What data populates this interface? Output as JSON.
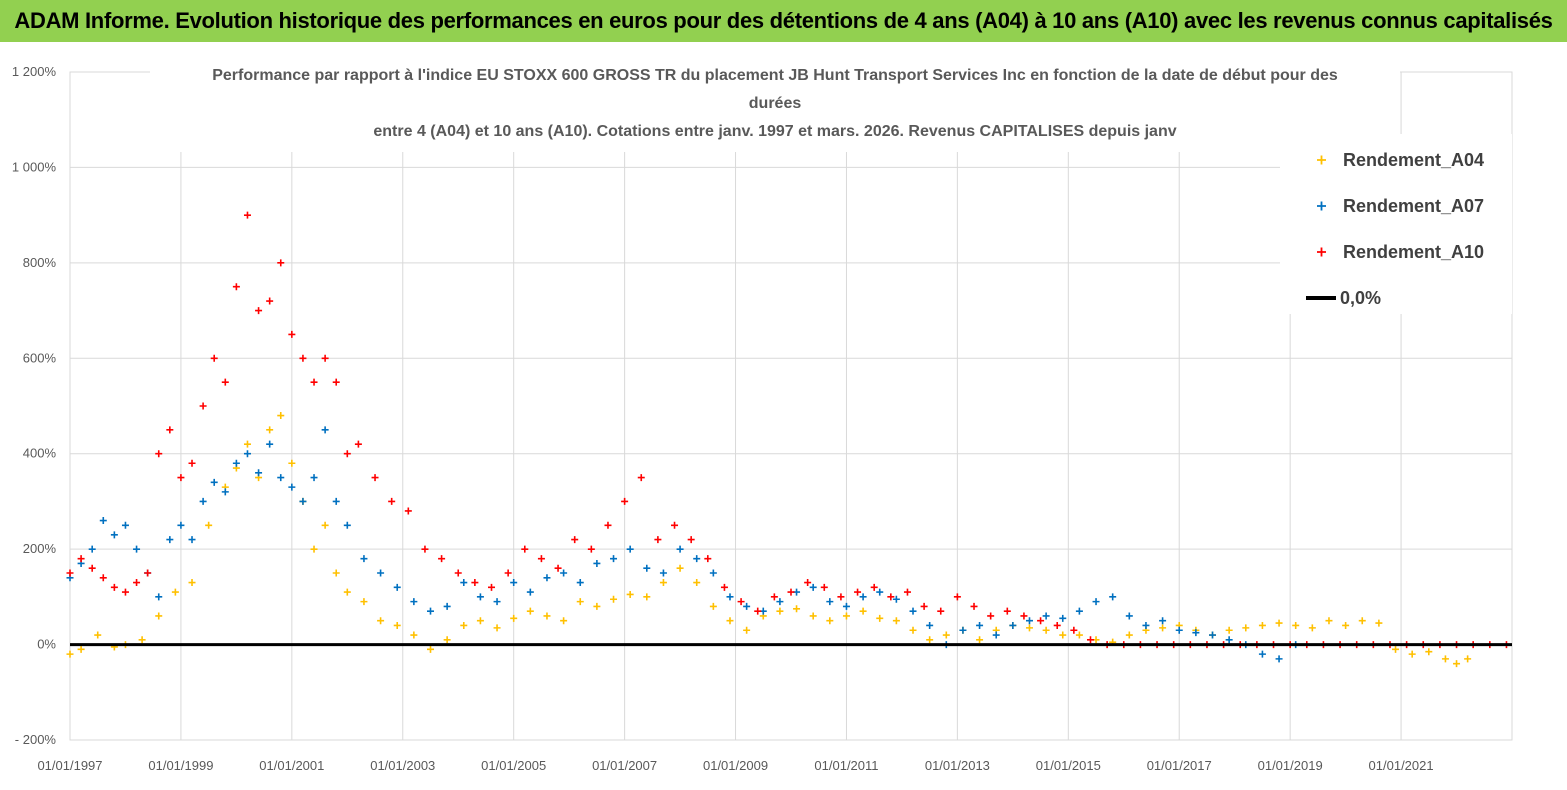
{
  "banner": {
    "title": "ADAM Informe. Evolution historique des performances en euros pour des détentions de 4 ans (A04) à 10 ans (A10) avec les revenus connus capitalisés"
  },
  "chart_data": {
    "type": "scatter",
    "title_lines": [
      "Performance par rapport à l'indice EU STOXX 600 GROSS TR  du placement JB Hunt Transport Services  Inc en  fonction de la date de début pour des",
      "durées",
      "entre 4 (A04) et 10 ans (A10). Cotations entre janv. 1997 et mars. 2026. Revenus CAPITALISES depuis janv"
    ],
    "ylim": [
      -200,
      1200
    ],
    "xlim": [
      1997.0,
      2023.0
    ],
    "y_ticks": [
      {
        "value": 1200,
        "label": "1 200%"
      },
      {
        "value": 1000,
        "label": "1 000%"
      },
      {
        "value": 800,
        "label": "800%"
      },
      {
        "value": 600,
        "label": "600%"
      },
      {
        "value": 400,
        "label": "400%"
      },
      {
        "value": 200,
        "label": "200%"
      },
      {
        "value": 0,
        "label": "0%"
      },
      {
        "value": -200,
        "label": "- 200%"
      }
    ],
    "x_ticks": [
      {
        "value": 1997,
        "label": "01/01/1997"
      },
      {
        "value": 1999,
        "label": "01/01/1999"
      },
      {
        "value": 2001,
        "label": "01/01/2001"
      },
      {
        "value": 2003,
        "label": "01/01/2003"
      },
      {
        "value": 2005,
        "label": "01/01/2005"
      },
      {
        "value": 2007,
        "label": "01/01/2007"
      },
      {
        "value": 2009,
        "label": "01/01/2009"
      },
      {
        "value": 2011,
        "label": "01/01/2011"
      },
      {
        "value": 2013,
        "label": "01/01/2013"
      },
      {
        "value": 2015,
        "label": "01/01/2015"
      },
      {
        "value": 2017,
        "label": "01/01/2017"
      },
      {
        "value": 2019,
        "label": "01/01/2019"
      },
      {
        "value": 2021,
        "label": "01/01/2021"
      }
    ],
    "grid": {
      "horizontal": true,
      "vertical": true
    },
    "legend_position": "top-right",
    "series": [
      {
        "name": "Rendement_A04",
        "color": "#ffc000",
        "marker": "cross",
        "x": [
          1997.0,
          1997.2,
          1997.5,
          1997.8,
          1998.0,
          1998.3,
          1998.6,
          1998.9,
          1999.2,
          1999.5,
          1999.8,
          2000.0,
          2000.2,
          2000.4,
          2000.6,
          2000.8,
          2001.0,
          2001.2,
          2001.4,
          2001.6,
          2001.8,
          2002.0,
          2002.3,
          2002.6,
          2002.9,
          2003.2,
          2003.5,
          2003.8,
          2004.1,
          2004.4,
          2004.7,
          2005.0,
          2005.3,
          2005.6,
          2005.9,
          2006.2,
          2006.5,
          2006.8,
          2007.1,
          2007.4,
          2007.7,
          2008.0,
          2008.3,
          2008.6,
          2008.9,
          2009.2,
          2009.5,
          2009.8,
          2010.1,
          2010.4,
          2010.7,
          2011.0,
          2011.3,
          2011.6,
          2011.9,
          2012.2,
          2012.5,
          2012.8,
          2013.1,
          2013.4,
          2013.7,
          2014.0,
          2014.3,
          2014.6,
          2014.9,
          2015.2,
          2015.5,
          2015.8,
          2016.1,
          2016.4,
          2016.7,
          2017.0,
          2017.3,
          2017.6,
          2017.9,
          2018.2,
          2018.5,
          2018.8,
          2019.1,
          2019.4,
          2019.7,
          2020.0,
          2020.3,
          2020.6,
          2020.9,
          2021.2,
          2021.5,
          2021.8,
          2022.0,
          2022.2
        ],
        "y": [
          -20,
          -10,
          20,
          -5,
          0,
          10,
          60,
          110,
          130,
          250,
          330,
          370,
          420,
          350,
          450,
          480,
          380,
          300,
          200,
          250,
          150,
          110,
          90,
          50,
          40,
          20,
          -10,
          10,
          40,
          50,
          35,
          55,
          70,
          60,
          50,
          90,
          80,
          95,
          105,
          100,
          130,
          160,
          130,
          80,
          50,
          30,
          60,
          70,
          75,
          60,
          50,
          60,
          70,
          55,
          50,
          30,
          10,
          20,
          30,
          10,
          30,
          40,
          35,
          30,
          20,
          20,
          10,
          5,
          20,
          30,
          35,
          40,
          30,
          20,
          30,
          35,
          40,
          45,
          40,
          35,
          50,
          40,
          50,
          45,
          -10,
          -20,
          -15,
          -30,
          -40,
          -30
        ]
      },
      {
        "name": "Rendement_A07",
        "color": "#0070c0",
        "marker": "cross",
        "x": [
          1997.0,
          1997.2,
          1997.4,
          1997.6,
          1997.8,
          1998.0,
          1998.2,
          1998.4,
          1998.6,
          1998.8,
          1999.0,
          1999.2,
          1999.4,
          1999.6,
          1999.8,
          2000.0,
          2000.2,
          2000.4,
          2000.6,
          2000.8,
          2001.0,
          2001.2,
          2001.4,
          2001.6,
          2001.8,
          2002.0,
          2002.3,
          2002.6,
          2002.9,
          2003.2,
          2003.5,
          2003.8,
          2004.1,
          2004.4,
          2004.7,
          2005.0,
          2005.3,
          2005.6,
          2005.9,
          2006.2,
          2006.5,
          2006.8,
          2007.1,
          2007.4,
          2007.7,
          2008.0,
          2008.3,
          2008.6,
          2008.9,
          2009.2,
          2009.5,
          2009.8,
          2010.1,
          2010.4,
          2010.7,
          2011.0,
          2011.3,
          2011.6,
          2011.9,
          2012.2,
          2012.5,
          2012.8,
          2013.1,
          2013.4,
          2013.7,
          2014.0,
          2014.3,
          2014.6,
          2014.9,
          2015.2,
          2015.5,
          2015.8,
          2016.1,
          2016.4,
          2016.7,
          2017.0,
          2017.3,
          2017.6,
          2017.9,
          2018.2,
          2018.5,
          2018.8,
          2019.1
        ],
        "y": [
          140,
          170,
          200,
          260,
          230,
          250,
          200,
          150,
          100,
          220,
          250,
          220,
          300,
          340,
          320,
          380,
          400,
          360,
          420,
          350,
          330,
          300,
          350,
          450,
          300,
          250,
          180,
          150,
          120,
          90,
          70,
          80,
          130,
          100,
          90,
          130,
          110,
          140,
          150,
          130,
          170,
          180,
          200,
          160,
          150,
          200,
          180,
          150,
          100,
          80,
          70,
          90,
          110,
          120,
          90,
          80,
          100,
          110,
          95,
          70,
          40,
          0,
          30,
          40,
          20,
          40,
          50,
          60,
          55,
          70,
          90,
          100,
          60,
          40,
          50,
          30,
          25,
          20,
          10,
          0,
          -20,
          -30,
          0
        ]
      },
      {
        "name": "Rendement_A10",
        "color": "#ff0000",
        "marker": "cross",
        "x": [
          1997.0,
          1997.2,
          1997.4,
          1997.6,
          1997.8,
          1998.0,
          1998.2,
          1998.4,
          1998.6,
          1998.8,
          1999.0,
          1999.2,
          1999.4,
          1999.6,
          1999.8,
          2000.0,
          2000.2,
          2000.4,
          2000.6,
          2000.8,
          2001.0,
          2001.2,
          2001.4,
          2001.6,
          2001.8,
          2002.0,
          2002.2,
          2002.5,
          2002.8,
          2003.1,
          2003.4,
          2003.7,
          2004.0,
          2004.3,
          2004.6,
          2004.9,
          2005.2,
          2005.5,
          2005.8,
          2006.1,
          2006.4,
          2006.7,
          2007.0,
          2007.3,
          2007.6,
          2007.9,
          2008.2,
          2008.5,
          2008.8,
          2009.1,
          2009.4,
          2009.7,
          2010.0,
          2010.3,
          2010.6,
          2010.9,
          2011.2,
          2011.5,
          2011.8,
          2012.1,
          2012.4,
          2012.7,
          2013.0,
          2013.3,
          2013.6,
          2013.9,
          2014.2,
          2014.5,
          2014.8,
          2015.1,
          2015.4,
          2015.7,
          2016.0,
          2016.3,
          2016.6,
          2016.9,
          2017.2,
          2017.5,
          2017.8,
          2018.1,
          2018.4,
          2018.7,
          2019.0,
          2019.3,
          2019.6,
          2019.9,
          2020.2,
          2020.5,
          2020.8,
          2021.1,
          2021.4,
          2021.7,
          2022.0,
          2022.3,
          2022.6,
          2022.9
        ],
        "y": [
          150,
          180,
          160,
          140,
          120,
          110,
          130,
          150,
          400,
          450,
          350,
          380,
          500,
          600,
          550,
          750,
          900,
          700,
          720,
          800,
          650,
          600,
          550,
          600,
          550,
          400,
          420,
          350,
          300,
          280,
          200,
          180,
          150,
          130,
          120,
          150,
          200,
          180,
          160,
          220,
          200,
          250,
          300,
          350,
          220,
          250,
          220,
          180,
          120,
          90,
          70,
          100,
          110,
          130,
          120,
          100,
          110,
          120,
          100,
          110,
          80,
          70,
          100,
          80,
          60,
          70,
          60,
          50,
          40,
          30,
          10,
          0,
          0,
          0,
          0,
          0,
          0,
          0,
          0,
          0,
          0,
          0,
          0,
          0,
          0,
          0,
          0,
          0,
          0,
          0,
          0,
          0,
          0,
          0,
          0,
          0
        ]
      },
      {
        "name": "0,0%",
        "color": "#000000",
        "marker": "line",
        "x": [
          1997.0,
          2023.0
        ],
        "y": [
          0,
          0
        ]
      }
    ]
  }
}
